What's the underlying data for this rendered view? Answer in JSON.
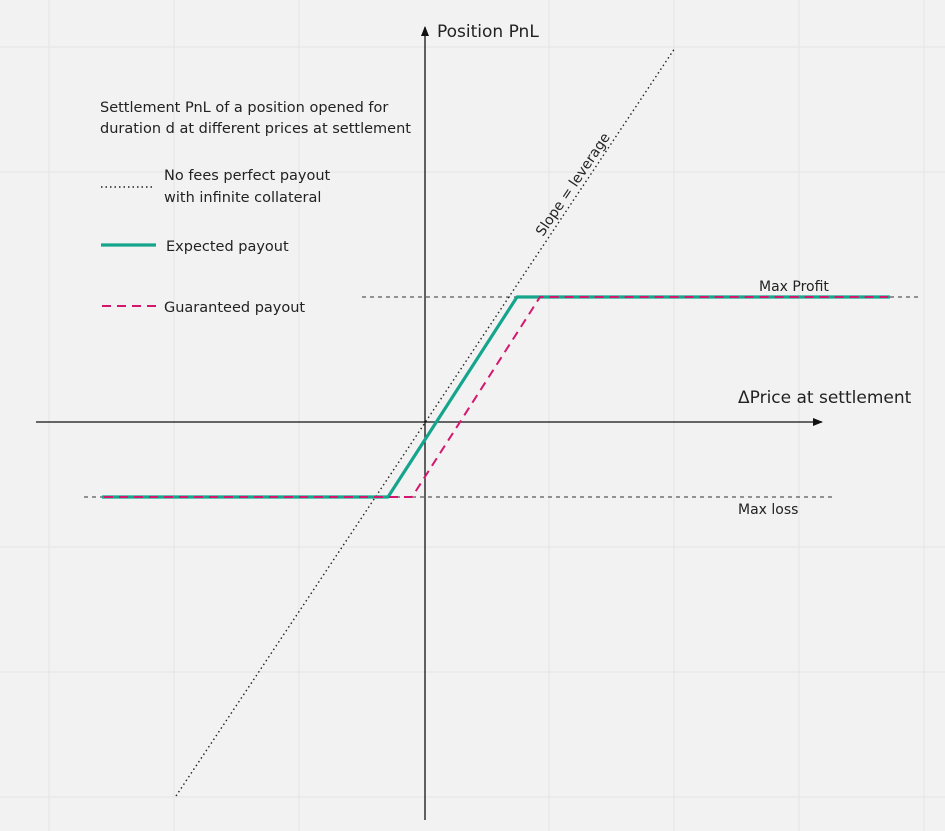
{
  "diagram": {
    "y_axis_label": "Position PnL",
    "x_axis_label": "ΔPrice at settlement",
    "description_line1": "Settlement PnL of a position opened for",
    "description_line2": "duration d at different prices at settlement",
    "slope_label": "Slope = leverage",
    "max_profit_label": "Max Profit",
    "max_loss_label": "Max loss",
    "legend": {
      "perfect_line1": "No fees perfect payout",
      "perfect_line2": "with infinite collateral",
      "expected": "Expected payout",
      "guaranteed": "Guaranteed payout"
    },
    "colors": {
      "background": "#f2f2f2",
      "grid": "#e2e2e2",
      "axis": "#111111",
      "expected": "#14a58c",
      "guaranteed": "#d4166e",
      "dotted": "#222222"
    }
  }
}
